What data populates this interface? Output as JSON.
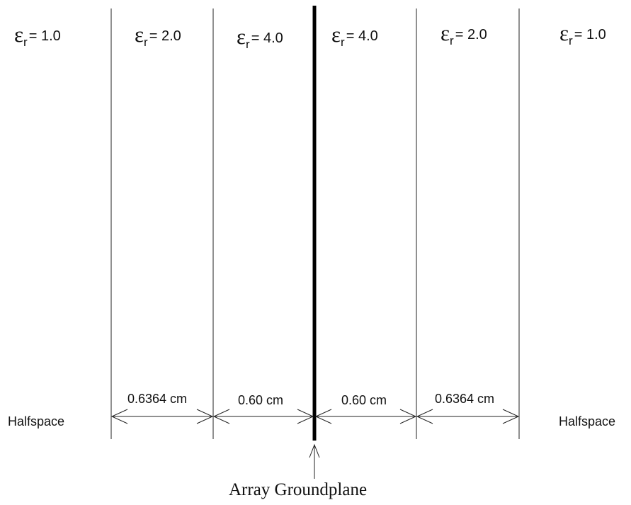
{
  "regions": [
    {
      "symbol": "ε",
      "subscript": "r",
      "value": "= 1.0"
    },
    {
      "symbol": "ε",
      "subscript": "r",
      "value": "= 2.0"
    },
    {
      "symbol": "ε",
      "subscript": "r",
      "value": "= 4.0"
    },
    {
      "symbol": "ε",
      "subscript": "r",
      "value": "= 4.0"
    },
    {
      "symbol": "ε",
      "subscript": "r",
      "value": "= 2.0"
    },
    {
      "symbol": "ε",
      "subscript": "r",
      "value": "= 1.0"
    }
  ],
  "thicknesses": [
    "0.6364 cm",
    "0.60 cm",
    "0.60 cm",
    "0.6364 cm"
  ],
  "halfspace_left": "Halfspace",
  "halfspace_right": "Halfspace",
  "groundplane_label": "Array Groundplane"
}
